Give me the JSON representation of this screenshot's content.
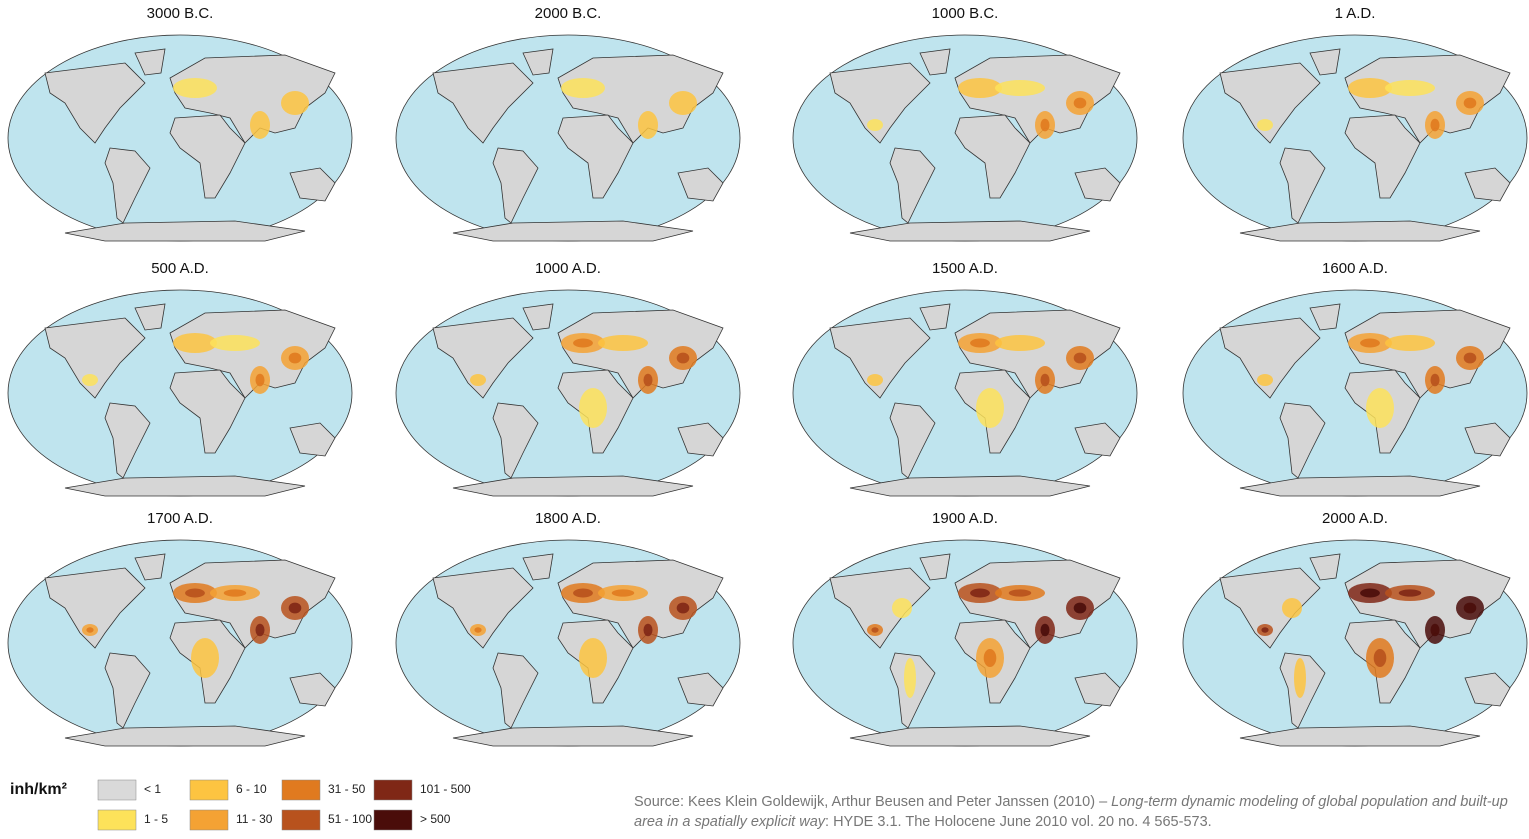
{
  "maps": [
    {
      "title": "3000 B.C."
    },
    {
      "title": "2000 B.C."
    },
    {
      "title": "1000 B.C."
    },
    {
      "title": "1 A.D."
    },
    {
      "title": "500 A.D."
    },
    {
      "title": "1000 A.D."
    },
    {
      "title": "1500 A.D."
    },
    {
      "title": "1600 A.D."
    },
    {
      "title": "1700 A.D."
    },
    {
      "title": "1800 A.D."
    },
    {
      "title": "1900 A.D."
    },
    {
      "title": "2000 A.D."
    }
  ],
  "legend": {
    "unit": "inh/km²",
    "items": [
      {
        "label": "< 1",
        "color": "#d9d9d9"
      },
      {
        "label": "1 - 5",
        "color": "#fde25a"
      },
      {
        "label": "6 - 10",
        "color": "#fdc441"
      },
      {
        "label": "11 - 30",
        "color": "#f4a234"
      },
      {
        "label": "31 - 50",
        "color": "#e07a1f"
      },
      {
        "label": "51 - 100",
        "color": "#b8521d"
      },
      {
        "label": "101 - 500",
        "color": "#7f2716"
      },
      {
        "label": "> 500",
        "color": "#4a0d0a"
      }
    ]
  },
  "source": {
    "lead": "Source: Kees Klein Goldewijk, Arthur Beusen and Peter Janssen (2010) – ",
    "title": "Long-term dynamic modeling of global population and built-up area in a spatially explicit way",
    "tail": ": HYDE 3.1. The Holocene June 2010 vol. 20 no. 4 565-573."
  }
}
